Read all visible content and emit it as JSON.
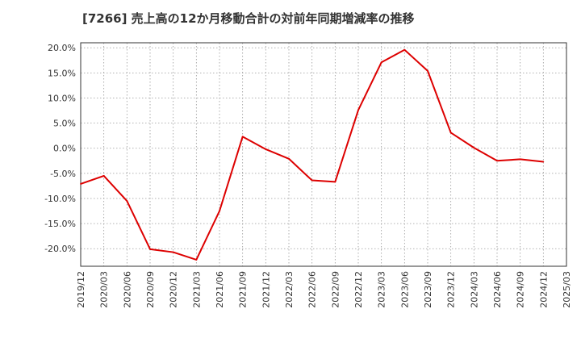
{
  "chart_data": {
    "type": "line",
    "title": "[7266]  売上高の12か月移動合計の対前年同期増減率の推移",
    "xlabel": "",
    "ylabel": "",
    "ylim": [
      -23.5,
      21.0
    ],
    "yticks": [
      20,
      15,
      10,
      5,
      0,
      -5,
      -10,
      -15,
      -20
    ],
    "ytick_labels": [
      "20.0%",
      "15.0%",
      "10.0%",
      "5.0%",
      "0.0%",
      "-5.0%",
      "-10.0%",
      "-15.0%",
      "-20.0%"
    ],
    "categories": [
      "2019/12",
      "2020/03",
      "2020/06",
      "2020/09",
      "2020/12",
      "2021/03",
      "2021/06",
      "2021/09",
      "2021/12",
      "2022/03",
      "2022/06",
      "2022/09",
      "2022/12",
      "2023/03",
      "2023/06",
      "2023/09",
      "2023/12",
      "2024/03",
      "2024/06",
      "2024/09",
      "2024/12",
      "2025/03"
    ],
    "grid": true,
    "series": [
      {
        "name": "増減率",
        "color": "#dd0000",
        "values": [
          -7.1,
          -5.5,
          -10.5,
          -20.1,
          -20.7,
          -22.2,
          -12.5,
          2.3,
          -0.2,
          -2.1,
          -6.4,
          -6.7,
          7.6,
          17.1,
          19.6,
          15.4,
          3.1,
          0.1,
          -2.5,
          -2.2,
          -2.7,
          null
        ]
      }
    ]
  }
}
